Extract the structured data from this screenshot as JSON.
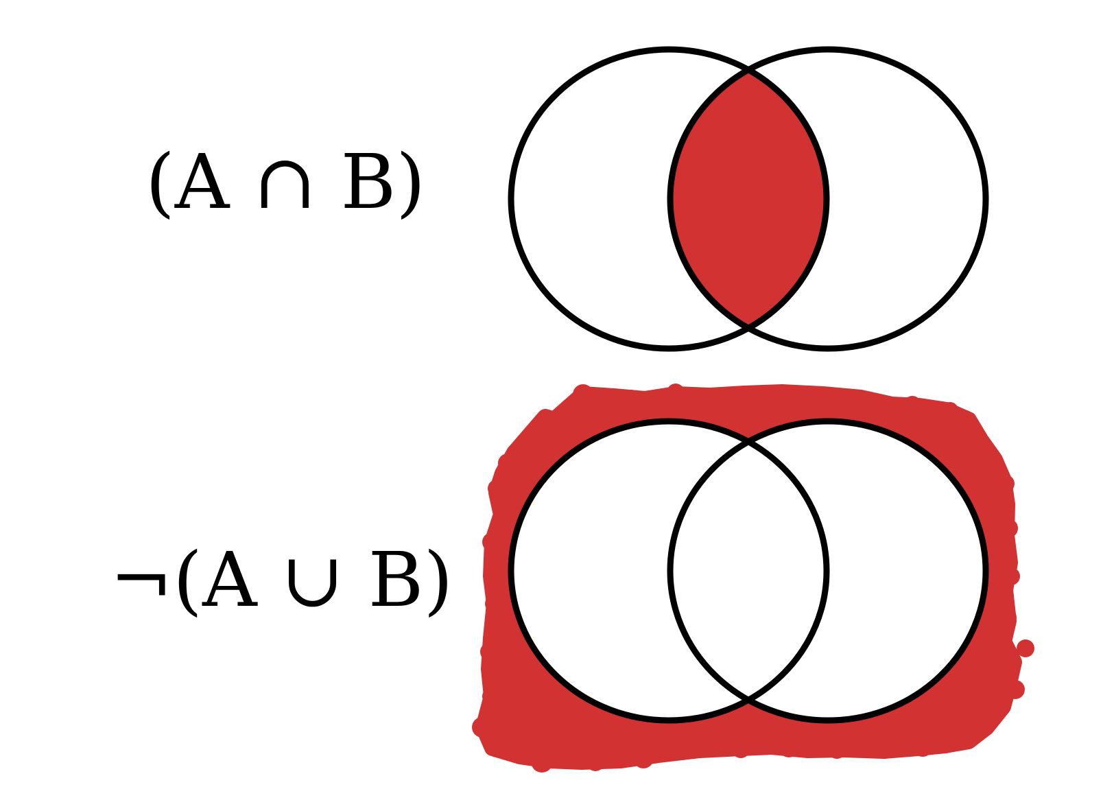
{
  "formulas": {
    "top": "(A ∩ B)",
    "bottom": "¬(A ∪ B)"
  },
  "colors": {
    "fill": "#d23232",
    "stroke": "#000000",
    "background": "#ffffff"
  },
  "diagrams": [
    {
      "name": "intersection-diagram",
      "shaded_region": "A ∩ B"
    },
    {
      "name": "complement-of-union-diagram",
      "shaded_region": "outside A ∪ B"
    }
  ]
}
